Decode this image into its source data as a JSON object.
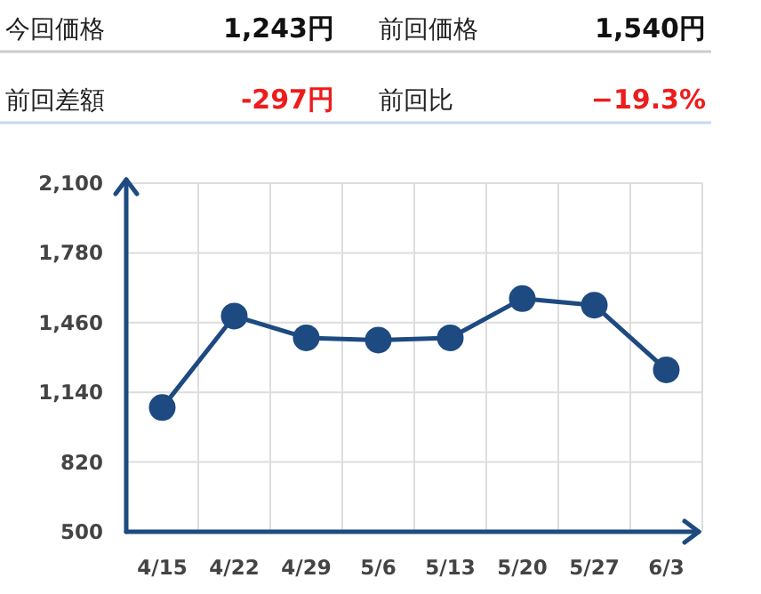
{
  "chart_data": [
    {
      "type": "other",
      "annotations": [
        "今回価格",
        "1,243円",
        "前回価格",
        "1,540円",
        "前回差額",
        "-297円",
        "前回比",
        "−19.3%"
      ],
      "colors": [
        "#222222",
        "#111111",
        "#222222",
        "#111111",
        "#222222",
        "#ee1c1c",
        "#222222",
        "#ee1c1c"
      ]
    },
    {
      "type": "line",
      "categories": [
        "4/15",
        "4/22",
        "4/29",
        "5/6",
        "5/13",
        "5/20",
        "5/27",
        "6/3"
      ],
      "series": [
        {
          "color": "#1d4a80",
          "values": [
            1070,
            1490,
            1390,
            1380,
            1390,
            1570,
            1540,
            1243
          ]
        }
      ],
      "ylim": [
        500,
        2100
      ],
      "yticks": [
        {
          "value": 500,
          "label": "500"
        },
        {
          "value": 820,
          "label": "820"
        },
        {
          "value": 1140,
          "label": "1,140"
        },
        {
          "value": 1460,
          "label": "1,460"
        },
        {
          "value": 1780,
          "label": "1,780"
        },
        {
          "value": 2100,
          "label": "2,100"
        }
      ],
      "grid": true,
      "marker": "circle",
      "line_style": "solid"
    }
  ]
}
